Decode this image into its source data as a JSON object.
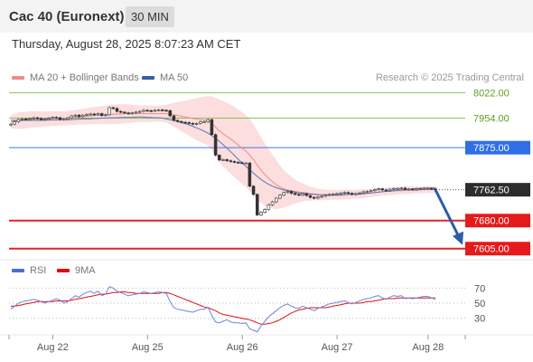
{
  "header": {
    "title": "Cac 40 (Euronext)",
    "timeframe": "30 MIN"
  },
  "datetime": "Thursday, August 28, 2025 8:07:23 AM CET",
  "legend_main": [
    {
      "label": "MA 20 + Bollinger Bands",
      "color": "#f08a8a"
    },
    {
      "label": "MA 50",
      "color": "#3a5ea8"
    }
  ],
  "credit": "Research © 2025 Trading Central",
  "legend_rsi": [
    {
      "label": "RSI",
      "color": "#4a6fd0"
    },
    {
      "label": "9MA",
      "color": "#e01010"
    }
  ],
  "chart_data": [
    {
      "type": "candlestick",
      "ylim": [
        7585,
        8040
      ],
      "x_ticks": [
        "Aug 22",
        "Aug 25",
        "Aug 26",
        "Aug 27",
        "Aug 28"
      ],
      "levels": [
        {
          "value": 8022,
          "label": "8022.00",
          "kind": "resistance"
        },
        {
          "value": 7954,
          "label": "7954.00",
          "kind": "resistance"
        },
        {
          "value": 7875,
          "label": "7875.00",
          "kind": "pivot"
        },
        {
          "value": 7762.5,
          "label": "7762.50",
          "kind": "last_price"
        },
        {
          "value": 7680,
          "label": "7680.00",
          "kind": "support"
        },
        {
          "value": 7605,
          "label": "7605.00",
          "kind": "support"
        }
      ],
      "close": [
        7938,
        7944,
        7950,
        7952,
        7951,
        7953,
        7955,
        7953,
        7950,
        7951,
        7954,
        7956,
        7955,
        7950,
        7951,
        7955,
        7960,
        7962,
        7958,
        7962,
        7964,
        7965,
        7963,
        7966,
        7961,
        7963,
        7982,
        7980,
        7972,
        7970,
        7968,
        7966,
        7968,
        7970,
        7972,
        7975,
        7974,
        7973,
        7975,
        7976,
        7975,
        7974,
        7960,
        7948,
        7945,
        7943,
        7942,
        7940,
        7938,
        7940,
        7944,
        7944,
        7950,
        7910,
        7855,
        7842,
        7843,
        7840,
        7838,
        7836,
        7835,
        7834,
        7834,
        7772,
        7750,
        7695,
        7702,
        7710,
        7722,
        7730,
        7740,
        7748,
        7755,
        7758,
        7753,
        7750,
        7748,
        7752,
        7747,
        7742,
        7740,
        7743,
        7745,
        7748,
        7750,
        7751,
        7752,
        7753,
        7755,
        7753,
        7750,
        7752,
        7754,
        7757,
        7758,
        7760,
        7763,
        7765,
        7762,
        7760,
        7764,
        7766,
        7766,
        7767,
        7763,
        7764,
        7763,
        7764,
        7765,
        7766,
        7766,
        7765,
        7762.5
      ],
      "ma20": [
        7944,
        7946,
        7947,
        7948,
        7949,
        7950,
        7951,
        7951,
        7951,
        7952,
        7952,
        7953,
        7953,
        7953,
        7954,
        7954,
        7955,
        7956,
        7957,
        7958,
        7959,
        7960,
        7961,
        7962,
        7962,
        7963,
        7964,
        7964,
        7965,
        7965,
        7966,
        7966,
        7966,
        7966,
        7966,
        7966,
        7966,
        7966,
        7966,
        7966,
        7966,
        7966,
        7965,
        7963,
        7961,
        7959,
        7957,
        7955,
        7953,
        7951,
        7950,
        7949,
        7947,
        7940,
        7930,
        7920,
        7912,
        7905,
        7898,
        7890,
        7882,
        7874,
        7866,
        7855,
        7843,
        7828,
        7815,
        7803,
        7793,
        7784,
        7776,
        7770,
        7765,
        7762,
        7760,
        7758,
        7756,
        7755,
        7754,
        7752,
        7751,
        7750,
        7749,
        7749,
        7749,
        7749,
        7749,
        7749,
        7750,
        7750,
        7750,
        7751,
        7751,
        7752,
        7753,
        7754,
        7755,
        7756,
        7757,
        7758,
        7758,
        7759,
        7760,
        7760,
        7761,
        7761,
        7762,
        7762,
        7762,
        7763,
        7763,
        7763,
        7763
      ],
      "ma50": [
        7948,
        7948,
        7948,
        7948,
        7948,
        7948,
        7948,
        7948,
        7948,
        7948,
        7949,
        7949,
        7949,
        7950,
        7950,
        7950,
        7950,
        7951,
        7951,
        7952,
        7952,
        7952,
        7953,
        7953,
        7954,
        7954,
        7955,
        7955,
        7955,
        7956,
        7956,
        7956,
        7956,
        7957,
        7957,
        7957,
        7956,
        7956,
        7955,
        7955,
        7954,
        7952,
        7950,
        7948,
        7945,
        7942,
        7939,
        7936,
        7932,
        7928,
        7924,
        7919,
        7914,
        7907,
        7900,
        7892,
        7883,
        7874,
        7864,
        7854,
        7844,
        7834,
        7825,
        7816,
        7807,
        7798,
        7790,
        7783,
        7777,
        7772,
        7768,
        7765,
        7762,
        7760,
        7758,
        7756,
        7754,
        7753,
        7752,
        7751,
        7750,
        7749,
        7749,
        7749,
        7748,
        7748,
        7748,
        7748,
        7749,
        7750,
        7750,
        7751,
        7751,
        7752,
        7753,
        7754,
        7755,
        7756,
        7757,
        7758,
        7759,
        7760,
        7761,
        7762,
        7763,
        7764,
        7765,
        7766,
        7766,
        7767,
        7767,
        7767,
        7767
      ],
      "bb_width": [
        18,
        20,
        22,
        22,
        22,
        22,
        22,
        21,
        21,
        20,
        20,
        20,
        20,
        19,
        19,
        19,
        20,
        20,
        20,
        21,
        22,
        22,
        23,
        23,
        24,
        24,
        26,
        26,
        26,
        26,
        25,
        25,
        24,
        23,
        22,
        22,
        22,
        22,
        21,
        21,
        22,
        24,
        28,
        32,
        36,
        40,
        44,
        48,
        52,
        56,
        60,
        63,
        66,
        72,
        78,
        84,
        88,
        90,
        92,
        94,
        95,
        96,
        96,
        96,
        95,
        92,
        88,
        84,
        78,
        72,
        66,
        58,
        50,
        44,
        38,
        32,
        28,
        24,
        21,
        19,
        17,
        16,
        15,
        14,
        14,
        13,
        13,
        13,
        13,
        13,
        12,
        12,
        12,
        12,
        11,
        11,
        11,
        11,
        10,
        10,
        10,
        10,
        10,
        10,
        10,
        10,
        9,
        9,
        9,
        9,
        9,
        9,
        9
      ]
    },
    {
      "type": "line",
      "ylim": [
        0,
        100
      ],
      "y_ticks": [
        70,
        50,
        30
      ],
      "series": [
        {
          "name": "RSI",
          "values": [
            42,
            46,
            50,
            52,
            53,
            54,
            55,
            54,
            52,
            50,
            52,
            54,
            56,
            54,
            50,
            52,
            56,
            60,
            58,
            62,
            64,
            66,
            63,
            66,
            60,
            62,
            72,
            70,
            66,
            64,
            62,
            60,
            61,
            62,
            63,
            65,
            64,
            63,
            64,
            65,
            64,
            63,
            52,
            44,
            42,
            41,
            40,
            39,
            38,
            40,
            42,
            42,
            45,
            34,
            25,
            24,
            26,
            28,
            25,
            24,
            24,
            23,
            24,
            16,
            14,
            12,
            20,
            26,
            32,
            36,
            40,
            44,
            47,
            49,
            46,
            44,
            43,
            46,
            44,
            42,
            40,
            43,
            45,
            47,
            49,
            50,
            51,
            52,
            53,
            51,
            49,
            51,
            53,
            55,
            56,
            57,
            59,
            60,
            57,
            55,
            58,
            60,
            59,
            60,
            56,
            57,
            56,
            57,
            58,
            59,
            59,
            57,
            55
          ]
        },
        {
          "name": "9MA",
          "values": [
            46,
            46,
            47,
            48,
            49,
            50,
            51,
            52,
            52,
            52,
            52,
            52,
            53,
            53,
            53,
            53,
            54,
            55,
            56,
            57,
            58,
            59,
            60,
            61,
            62,
            62,
            63,
            64,
            64,
            65,
            65,
            64,
            64,
            63,
            63,
            63,
            63,
            63,
            63,
            63,
            64,
            64,
            63,
            61,
            59,
            57,
            55,
            53,
            51,
            49,
            47,
            45,
            44,
            42,
            40,
            37,
            35,
            34,
            33,
            32,
            31,
            30,
            29,
            28,
            26,
            24,
            22,
            22,
            23,
            24,
            26,
            28,
            31,
            34,
            37,
            39,
            41,
            42,
            43,
            44,
            44,
            44,
            44,
            44,
            45,
            46,
            47,
            48,
            49,
            50,
            50,
            50,
            50,
            51,
            52,
            52,
            53,
            54,
            55,
            56,
            56,
            56,
            57,
            57,
            57,
            57,
            57,
            57,
            57,
            57,
            57,
            57,
            57
          ]
        }
      ]
    }
  ]
}
